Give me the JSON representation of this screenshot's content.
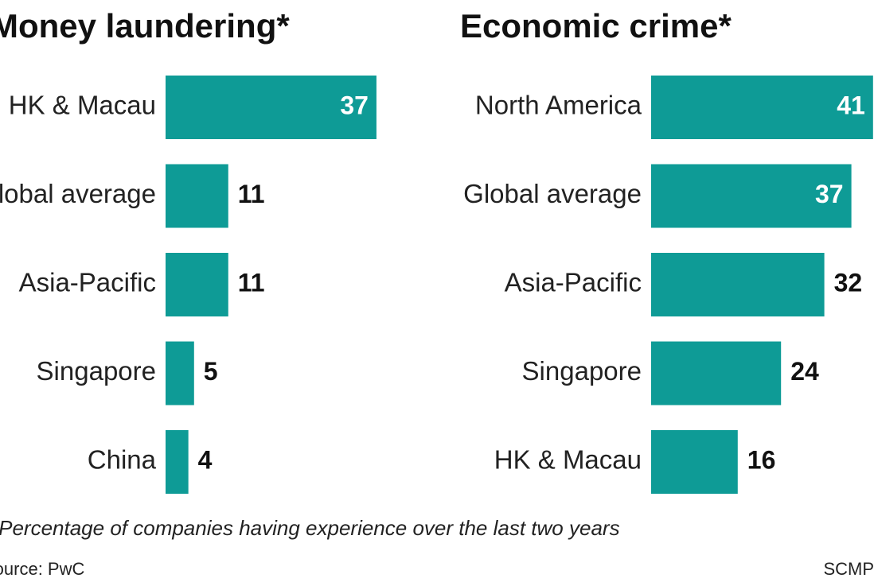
{
  "chart_data": [
    {
      "type": "bar",
      "title": "Money laundering*",
      "categories": [
        "HK & Macau",
        "Global average",
        "Asia-Pacific",
        "Singapore",
        "China"
      ],
      "values": [
        37,
        11,
        11,
        5,
        4
      ],
      "color": "#0e9b96"
    },
    {
      "type": "bar",
      "title": "Economic crime*",
      "categories": [
        "North America",
        "Global average",
        "Asia-Pacific",
        "Singapore",
        "HK & Macau"
      ],
      "values": [
        41,
        37,
        32,
        24,
        16
      ],
      "color": "#0e9b96"
    }
  ],
  "footnote": "*Percentage of companies having experience over the last two years",
  "source": "Source: PwC",
  "credit": "SCMP"
}
